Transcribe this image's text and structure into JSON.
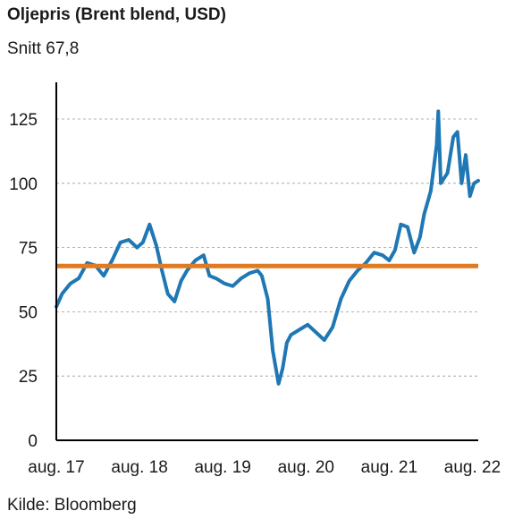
{
  "title": "Oljepris (Brent blend, USD)",
  "subtitle": "Snitt 67,8",
  "source": "Kilde: Bloomberg",
  "colors": {
    "series": "#1f77b4",
    "average": "#e07b24",
    "grid": "#9a9a9a",
    "axis": "#000000"
  },
  "chart_data": {
    "type": "line",
    "title": "Oljepris (Brent blend, USD)",
    "subtitle": "Snitt 67,8",
    "xlabel": "",
    "ylabel": "",
    "ylim": [
      0,
      135
    ],
    "yticks": [
      0,
      25,
      50,
      75,
      100,
      125
    ],
    "ytick_labels": [
      "0",
      "25",
      "50",
      "75",
      "100",
      "125"
    ],
    "xlim": [
      2017.58,
      2022.65
    ],
    "xticks": [
      2017.58,
      2018.58,
      2019.58,
      2020.58,
      2021.58,
      2022.58
    ],
    "xtick_labels": [
      "aug. 17",
      "aug. 18",
      "aug. 19",
      "aug. 20",
      "aug. 21",
      "aug. 22"
    ],
    "grid": "horizontal dashed",
    "average_line": {
      "value": 67.8
    },
    "series": [
      {
        "x": [
          2017.58,
          2017.65,
          2017.75,
          2017.85,
          2017.95,
          2018.05,
          2018.15,
          2018.25,
          2018.35,
          2018.45,
          2018.55,
          2018.62,
          2018.7,
          2018.78,
          2018.85,
          2018.92,
          2019.0,
          2019.08,
          2019.15,
          2019.25,
          2019.35,
          2019.42,
          2019.5,
          2019.6,
          2019.7,
          2019.8,
          2019.9,
          2020.0,
          2020.05,
          2020.12,
          2020.18,
          2020.25,
          2020.3,
          2020.35,
          2020.4,
          2020.5,
          2020.6,
          2020.7,
          2020.8,
          2020.9,
          2021.0,
          2021.1,
          2021.2,
          2021.3,
          2021.4,
          2021.5,
          2021.58,
          2021.65,
          2021.72,
          2021.8,
          2021.88,
          2021.95,
          2022.0,
          2022.08,
          2022.15,
          2022.17,
          2022.2,
          2022.28,
          2022.35,
          2022.4,
          2022.45,
          2022.5,
          2022.55,
          2022.6,
          2022.65
        ],
        "values": [
          52,
          57,
          61,
          63,
          69,
          68,
          64,
          70,
          77,
          78,
          75,
          77,
          84,
          76,
          66,
          57,
          54,
          62,
          66,
          70,
          72,
          64,
          63,
          61,
          60,
          63,
          65,
          66,
          64,
          55,
          35,
          22,
          28,
          38,
          41,
          43,
          45,
          42,
          39,
          44,
          55,
          62,
          66,
          69,
          73,
          72,
          70,
          74,
          84,
          83,
          73,
          79,
          88,
          97,
          115,
          128,
          100,
          104,
          118,
          120,
          100,
          111,
          95,
          100,
          101
        ]
      }
    ]
  }
}
